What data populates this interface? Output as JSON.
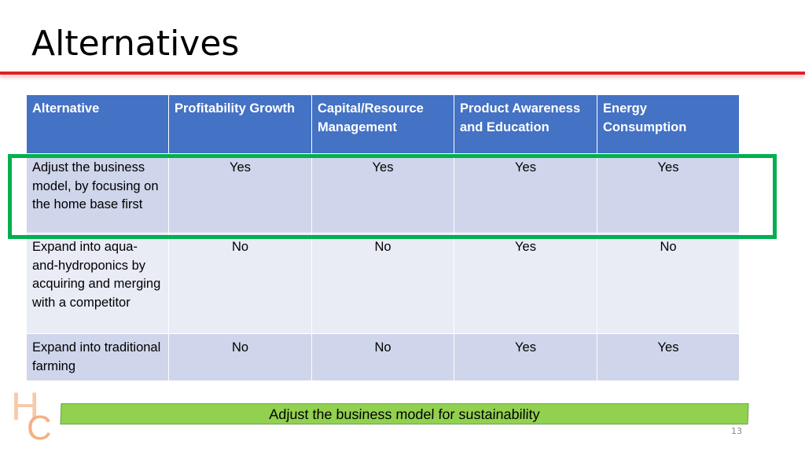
{
  "slide": {
    "title": "Alternatives",
    "table": {
      "header": [
        "Alternative",
        "Profitability Growth",
        "Capital/Resource Management",
        "Product Awareness and Education",
        "Energy Consumption"
      ],
      "rows": [
        [
          "Adjust the business model, by focusing on the home base first",
          "Yes",
          "Yes",
          "Yes",
          "Yes"
        ],
        [
          "Expand into aqua-and-hydroponics by acquiring and merging with a competitor",
          "No",
          "No",
          "Yes",
          "No"
        ],
        [
          "Expand into traditional farming",
          "No",
          "No",
          "Yes",
          "Yes"
        ]
      ]
    },
    "callout": "Adjust the business model for sustainability",
    "logo": {
      "top": "H",
      "bottom": "C"
    },
    "page_number": "13"
  }
}
